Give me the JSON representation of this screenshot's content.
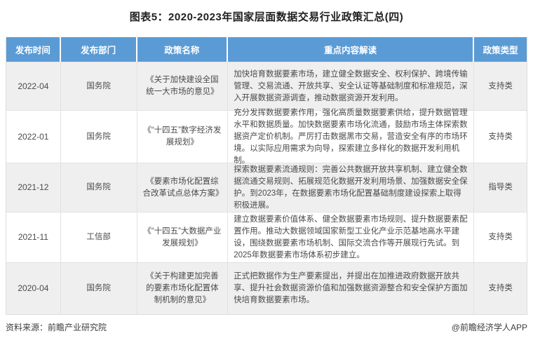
{
  "title": "图表5：2020-2023年国家层面数据交易行业政策汇总(四)",
  "colors": {
    "header_bg": "#5B9BD5",
    "header_text": "#FFFFFF",
    "row_alt_bg": "#EFEFEF",
    "row_bg": "#FFFFFF",
    "body_text": "#4A4A4A"
  },
  "table": {
    "headers": [
      "发布时间",
      "发布部门",
      "政策名称",
      "重点内容解读",
      "政策类型"
    ],
    "rows": [
      {
        "date": "2022-04",
        "dept": "国务院",
        "policy": "《关于加快建设全国统一大市场的意见》",
        "content": "加快培育数据要素市场，建立健全数据安全、权利保护、跨境传输管理、交易流通、开放共享、安全认证等基础制度和标准规范，深入开展数据资源调查，推动数据资源开发利用。",
        "type": "支持类"
      },
      {
        "date": "2022-01",
        "dept": "国务院",
        "policy": "《“十四五”数字经济发展规划》",
        "content": "充分发挥数据要素作用，强化高质量数据要素供给，提升数据管理水平和数据质量。加快数据要素市场化流通，鼓励市场主体探索数据资产定价机制。严厉打击数据黑市交易，营造安全有序的市场环境。以实际应用需求为向导，探索建立多样化的数据开发利用机制。",
        "type": "支持类"
      },
      {
        "date": "2021-12",
        "dept": "国务院",
        "policy": "《要素市场化配置综合改革试点总体方案》",
        "content": "探索数据要素流通规则：完善公共数据开放共享机制、建立健全数据流通交易规则、拓展规范化数据开发利用场景、加强数据安全保护。到2023年，在数据要素市场化配置基础制度建设探索上取得积极进展。",
        "type": "指导类"
      },
      {
        "date": "2021-11",
        "dept": "工信部",
        "policy": "《“十四五”大数据产业发展规划》",
        "content": "建立数据要素价值体系、健全数据要素市场规则、提升数据要素配置作用。推动大数据领域国家新型工业化产业示范基地高水平建设，围绕数据要素市场机制、国际交流合作等开展现行先试。到2025年数据要素市场体系初步建立。",
        "type": "支持类"
      },
      {
        "date": "2020-04",
        "dept": "国务院",
        "policy": "《关于构建更加完善的要素市场化配置体制机制的意见》",
        "content": "正式把数据作为生产要素提出，并提出在加推进政府数据开放共享、提升社会数据资源价值和加强数据资源整合和安全保护方面加快培育数据要素市场。",
        "type": "支持类"
      }
    ]
  },
  "footer": {
    "source": "资料来源：前瞻产业研究院",
    "credit": "@前瞻经济学人APP"
  },
  "watermark": {
    "text": "前瞻产业研究院"
  }
}
